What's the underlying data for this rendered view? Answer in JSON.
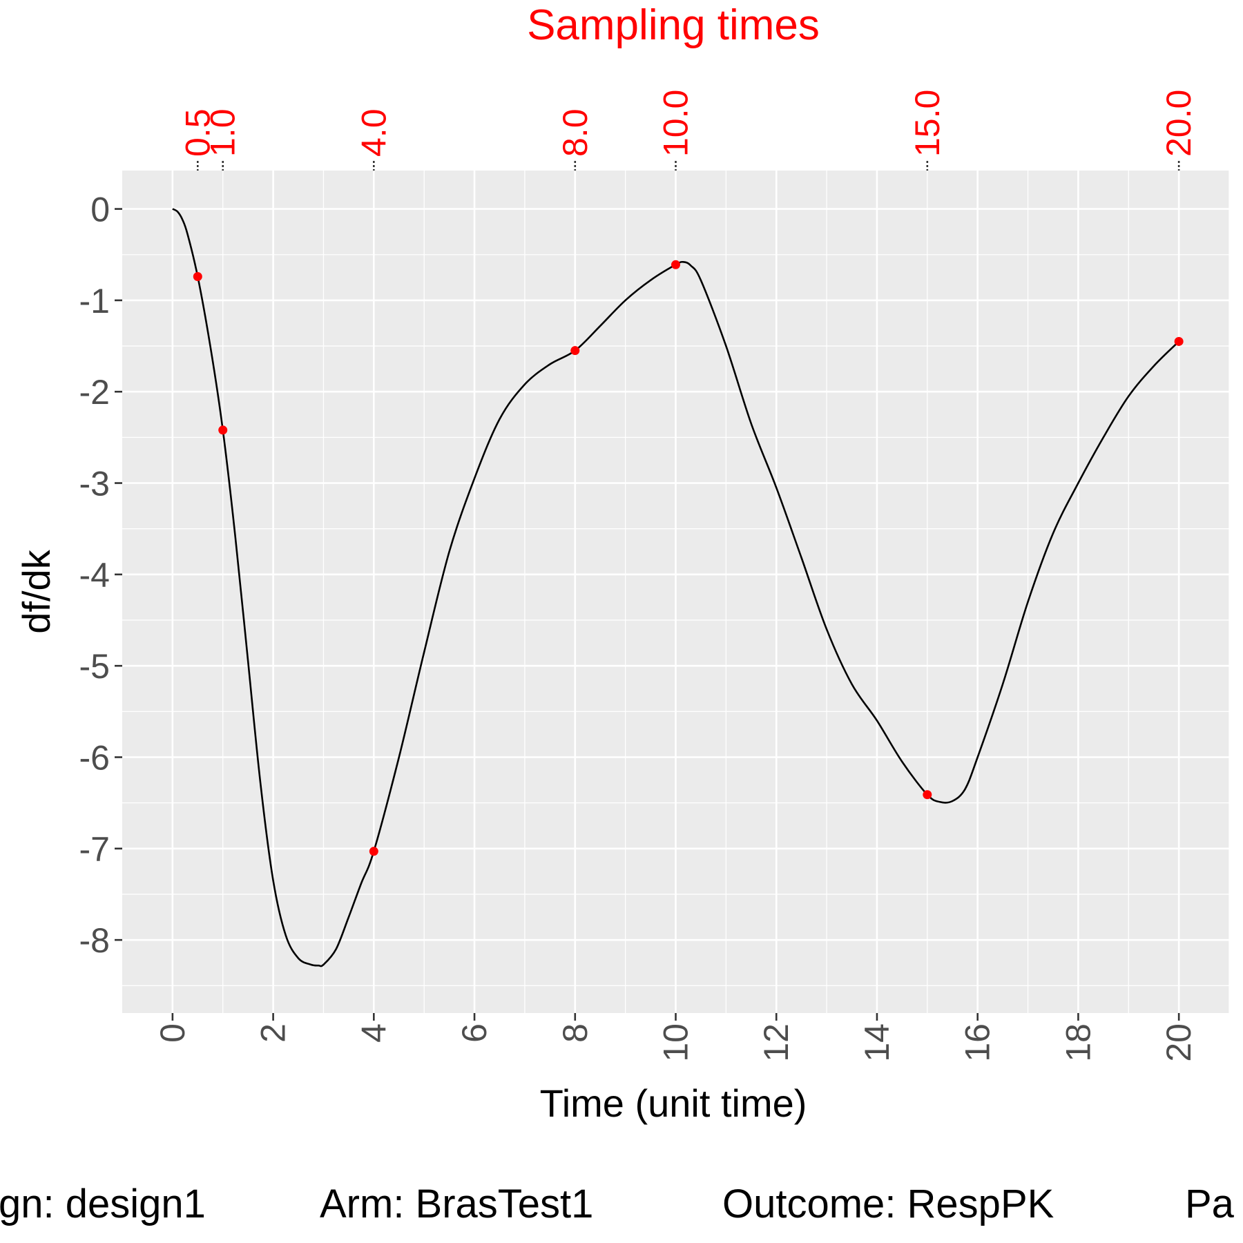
{
  "chart_data": {
    "type": "line",
    "xlabel": "Time (unit time)",
    "ylabel": "df/dk",
    "top_axis_title": "Sampling times",
    "xlim": [
      -1,
      21
    ],
    "ylim": [
      -8.8,
      0.42
    ],
    "x_ticks": [
      "0",
      "2",
      "4",
      "6",
      "8",
      "10",
      "12",
      "14",
      "16",
      "18",
      "20"
    ],
    "y_ticks": [
      "0",
      "-1",
      "-2",
      "-3",
      "-4",
      "-5",
      "-6",
      "-7",
      "-8"
    ],
    "sampling_times": [
      "0.5",
      "1.0",
      "4.0",
      "8.0",
      "10.0",
      "15.0",
      "20.0"
    ],
    "curve": {
      "x": [
        0,
        0.1,
        0.2,
        0.3,
        0.5,
        0.75,
        1,
        1.25,
        1.5,
        1.75,
        2,
        2.25,
        2.5,
        2.75,
        2.9,
        3,
        3.25,
        3.5,
        3.75,
        4,
        4.5,
        5,
        5.5,
        6,
        6.5,
        7,
        7.5,
        8,
        8.5,
        9,
        9.5,
        10,
        10.15,
        10.3,
        10.5,
        11,
        11.5,
        12,
        12.5,
        13,
        13.5,
        14,
        14.5,
        15,
        15.25,
        15.5,
        15.75,
        16,
        16.5,
        17,
        17.5,
        18,
        18.5,
        19,
        19.5,
        20
      ],
      "y": [
        0,
        -0.03,
        -0.12,
        -0.28,
        -0.74,
        -1.5,
        -2.42,
        -3.6,
        -4.95,
        -6.3,
        -7.35,
        -7.95,
        -8.2,
        -8.27,
        -8.28,
        -8.27,
        -8.1,
        -7.75,
        -7.38,
        -7.03,
        -6.0,
        -4.85,
        -3.75,
        -2.95,
        -2.3,
        -1.92,
        -1.7,
        -1.55,
        -1.28,
        -1.0,
        -0.78,
        -0.61,
        -0.58,
        -0.62,
        -0.78,
        -1.5,
        -2.35,
        -3.05,
        -3.82,
        -4.6,
        -5.2,
        -5.6,
        -6.05,
        -6.41,
        -6.49,
        -6.48,
        -6.35,
        -6.0,
        -5.2,
        -4.3,
        -3.55,
        -3.0,
        -2.5,
        -2.05,
        -1.72,
        -1.45
      ]
    },
    "points": {
      "x": [
        0.5,
        1.0,
        4.0,
        8.0,
        10.0,
        15.0,
        20.0
      ],
      "y": [
        -0.74,
        -2.42,
        -7.03,
        -1.55,
        -0.61,
        -6.41,
        -1.45
      ]
    },
    "colors": {
      "panel": "#ebebeb",
      "grid": "#ffffff",
      "line": "#000000",
      "points": "#ff0000",
      "accent": "#ff0000"
    },
    "grid": true,
    "legend": "none"
  },
  "caption": {
    "design": "gn: design1",
    "arm": "Arm: BrasTest1",
    "outcome": "Outcome: RespPK",
    "parameter": "Pa"
  }
}
